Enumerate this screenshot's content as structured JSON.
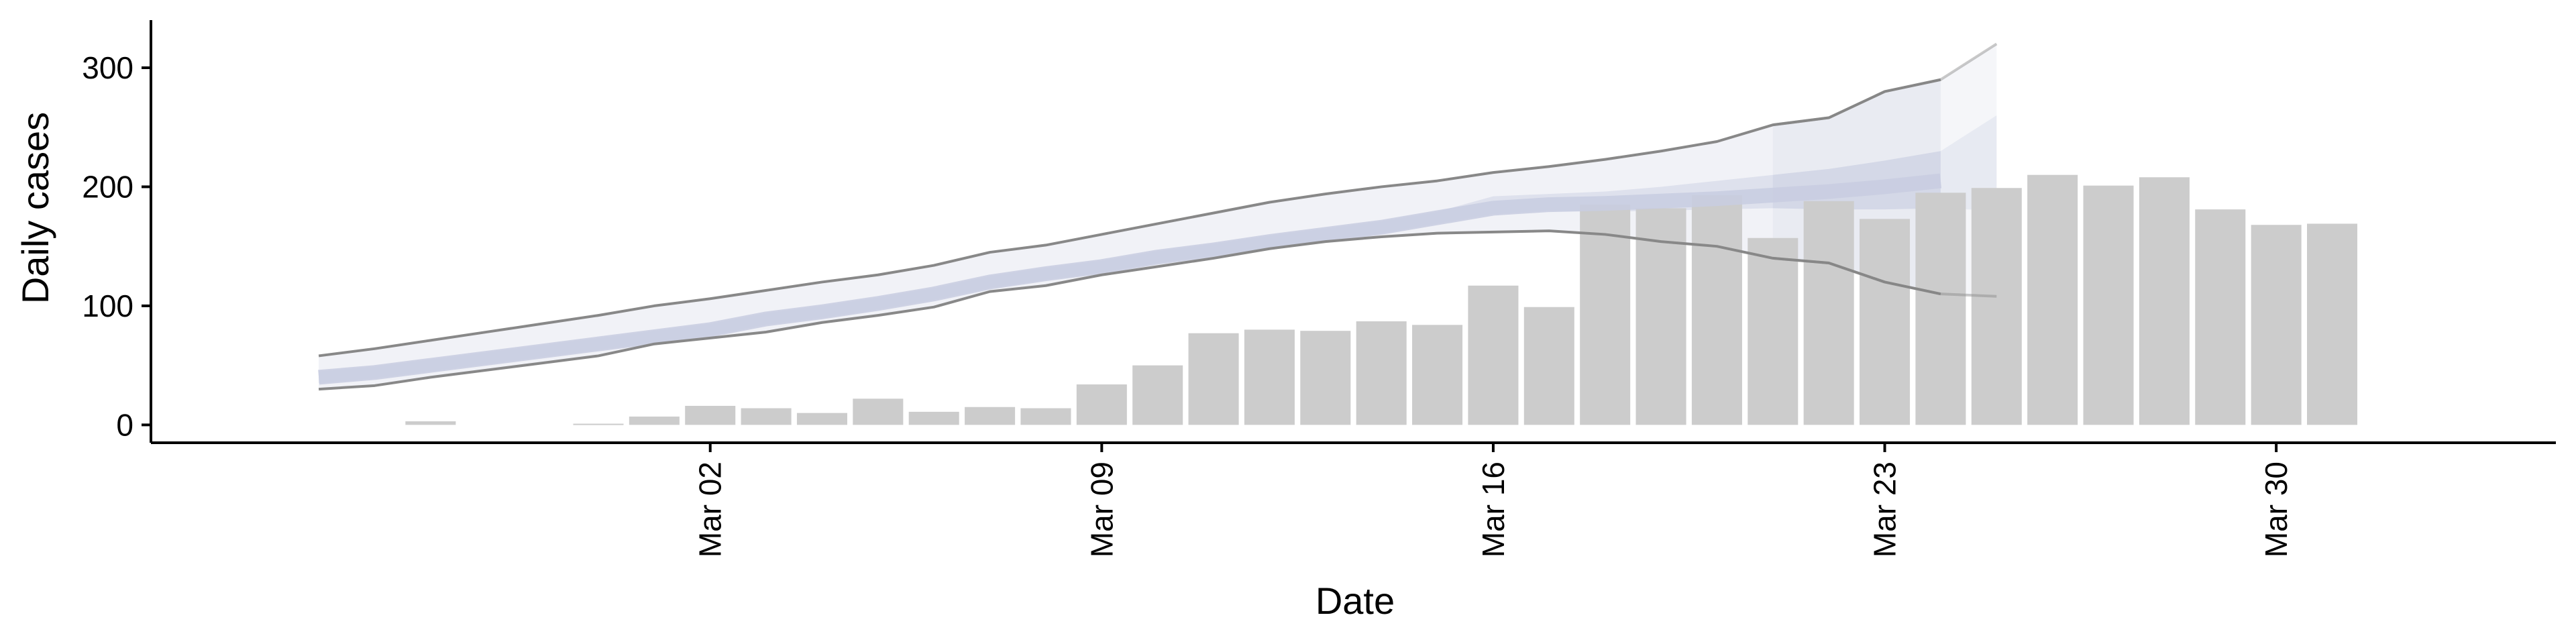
{
  "chart_data": {
    "type": "bar",
    "xlabel": "Date",
    "ylabel": "Daily cases",
    "ylim": [
      -15,
      340
    ],
    "yticks": [
      0,
      100,
      200,
      300
    ],
    "xticks": [
      "Mar 02",
      "Mar 09",
      "Mar 16",
      "Mar 23",
      "Mar 30"
    ],
    "xtick_dates": [
      "2020-03-02",
      "2020-03-09",
      "2020-03-16",
      "2020-03-23",
      "2020-03-30"
    ],
    "x_range": [
      "2020-02-21",
      "2020-04-04"
    ],
    "grid": false,
    "bars": {
      "color": "#cccccc",
      "dates": [
        "2020-02-26",
        "2020-02-27",
        "2020-02-28",
        "2020-02-29",
        "2020-03-01",
        "2020-03-02",
        "2020-03-03",
        "2020-03-04",
        "2020-03-05",
        "2020-03-06",
        "2020-03-07",
        "2020-03-08",
        "2020-03-09",
        "2020-03-10",
        "2020-03-11",
        "2020-03-12",
        "2020-03-13",
        "2020-03-14",
        "2020-03-15",
        "2020-03-16",
        "2020-03-17",
        "2020-03-18",
        "2020-03-19",
        "2020-03-20",
        "2020-03-21",
        "2020-03-22",
        "2020-03-23",
        "2020-03-24",
        "2020-03-25",
        "2020-03-26",
        "2020-03-27",
        "2020-03-28",
        "2020-03-29",
        "2020-03-30",
        "2020-03-31",
        "2020-04-01",
        "2020-04-02",
        "2020-04-03"
      ],
      "values": [
        3,
        0,
        0,
        1,
        7,
        16,
        14,
        10,
        22,
        11,
        15,
        14,
        34,
        50,
        77,
        80,
        79,
        87,
        84,
        117,
        99,
        185,
        182,
        193,
        157,
        188,
        173,
        195,
        199,
        210,
        201,
        208,
        181,
        168,
        169,
        0,
        0,
        0
      ]
    },
    "estimate": {
      "fill_color": "#c8cde0",
      "line_color": "#888888",
      "dates": [
        "2020-02-24",
        "2020-02-25",
        "2020-02-26",
        "2020-02-27",
        "2020-02-28",
        "2020-02-29",
        "2020-03-01",
        "2020-03-02",
        "2020-03-03",
        "2020-03-04",
        "2020-03-05",
        "2020-03-06",
        "2020-03-07",
        "2020-03-08",
        "2020-03-09",
        "2020-03-10",
        "2020-03-11",
        "2020-03-12",
        "2020-03-13",
        "2020-03-14",
        "2020-03-15",
        "2020-03-16",
        "2020-03-17",
        "2020-03-18",
        "2020-03-19",
        "2020-03-20",
        "2020-03-21",
        "2020-03-22",
        "2020-03-23",
        "2020-03-24"
      ],
      "median": [
        40,
        44,
        50,
        56,
        62,
        68,
        74,
        80,
        89,
        95,
        102,
        110,
        120,
        127,
        133,
        141,
        147,
        154,
        160,
        166,
        174,
        182,
        185,
        186,
        188,
        190,
        193,
        196,
        200,
        205
      ],
      "inner_lower": [
        35,
        39,
        45,
        51,
        57,
        63,
        69,
        75,
        84,
        90,
        97,
        105,
        115,
        122,
        128,
        136,
        142,
        149,
        155,
        161,
        169,
        177,
        180,
        179,
        180,
        181,
        182,
        181,
        181,
        182
      ],
      "inner_upper": [
        45,
        49,
        55,
        61,
        67,
        73,
        79,
        85,
        94,
        100,
        107,
        115,
        125,
        132,
        138,
        146,
        152,
        159,
        165,
        171,
        179,
        192,
        194,
        196,
        200,
        205,
        210,
        215,
        222,
        230
      ],
      "lower": [
        30,
        33,
        40,
        46,
        52,
        58,
        68,
        73,
        78,
        86,
        92,
        99,
        112,
        117,
        126,
        133,
        140,
        148,
        154,
        158,
        161,
        162,
        163,
        160,
        154,
        150,
        140,
        136,
        120,
        110
      ],
      "upper": [
        58,
        64,
        71,
        78,
        85,
        92,
        100,
        106,
        113,
        120,
        126,
        134,
        145,
        151,
        160,
        169,
        178,
        187,
        194,
        200,
        205,
        212,
        217,
        223,
        230,
        238,
        252,
        258,
        280,
        290
      ],
      "forecast_dates": [
        "2020-03-21",
        "2020-03-22",
        "2020-03-23",
        "2020-03-24",
        "2020-03-25"
      ],
      "forecast_median": [
        193,
        196,
        200,
        205,
        212
      ],
      "forecast_inner_lower": [
        182,
        181,
        181,
        182,
        180
      ],
      "forecast_inner_upper": [
        210,
        215,
        222,
        230,
        260
      ],
      "forecast_lower": [
        140,
        136,
        120,
        110,
        108
      ],
      "forecast_upper": [
        252,
        258,
        280,
        290,
        320
      ]
    }
  }
}
